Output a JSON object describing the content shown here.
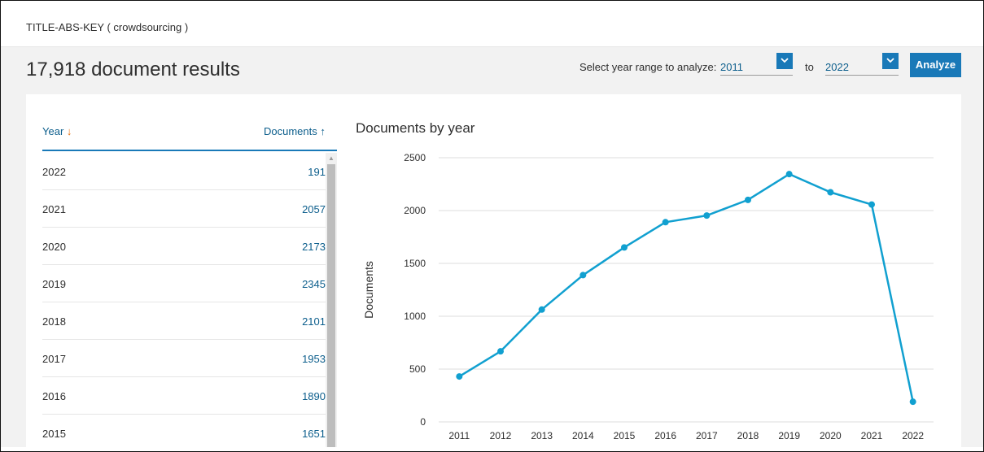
{
  "query": {
    "text": "TITLE-ABS-KEY ( crowdsourcing )"
  },
  "results": {
    "title": "17,918 document results"
  },
  "range": {
    "label": "Select year range to analyze:",
    "from": "2011",
    "to_label": "to",
    "to": "2022",
    "analyze_label": "Analyze"
  },
  "table": {
    "year_header": "Year",
    "docs_header": "Documents",
    "rows": [
      {
        "year": "2022",
        "docs": "191"
      },
      {
        "year": "2021",
        "docs": "2057"
      },
      {
        "year": "2020",
        "docs": "2173"
      },
      {
        "year": "2019",
        "docs": "2345"
      },
      {
        "year": "2018",
        "docs": "2101"
      },
      {
        "year": "2017",
        "docs": "1953"
      },
      {
        "year": "2016",
        "docs": "1890"
      },
      {
        "year": "2015",
        "docs": "1651"
      }
    ]
  },
  "colors": {
    "accent": "#1979b8",
    "link": "#0c5e8c",
    "line": "#11a0d0",
    "sort_down": "#e8700f"
  },
  "chart_data": {
    "type": "line",
    "title": "Documents by year",
    "ylabel": "Documents",
    "xlabel": "",
    "x": [
      "2011",
      "2012",
      "2013",
      "2014",
      "2015",
      "2016",
      "2017",
      "2018",
      "2019",
      "2020",
      "2021",
      "2022"
    ],
    "series": [
      {
        "values": [
          430,
          668,
          1063,
          1389,
          1651,
          1890,
          1953,
          2101,
          2345,
          2173,
          2057,
          191
        ]
      }
    ],
    "ylim": [
      0,
      2500
    ],
    "yticks": [
      0,
      500,
      1000,
      1500,
      2000,
      2500
    ],
    "grid": true
  }
}
